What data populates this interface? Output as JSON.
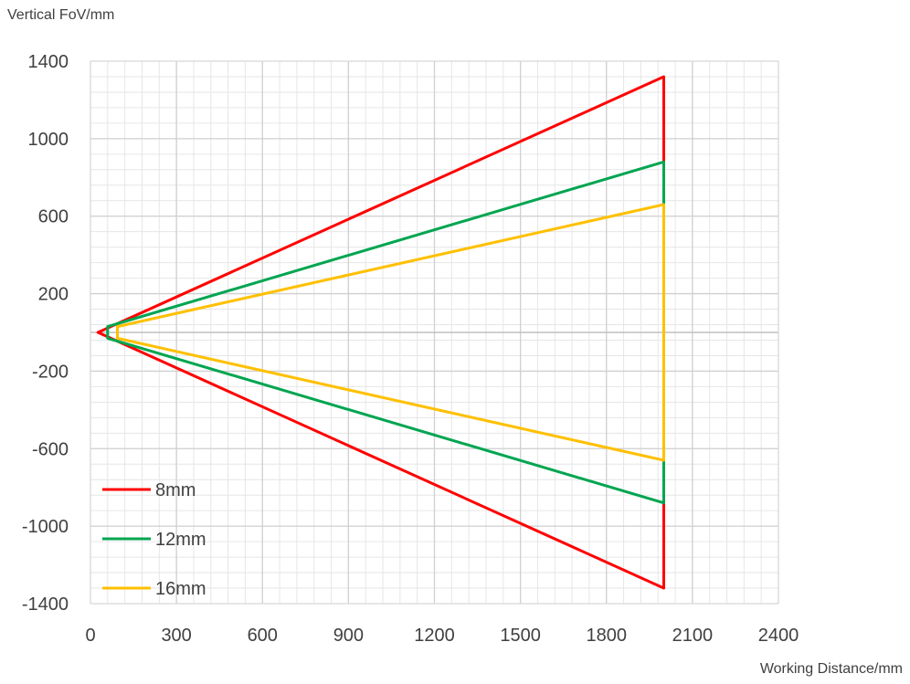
{
  "chart_data": {
    "type": "line",
    "title": "",
    "xlabel": "Working Distance/mm",
    "ylabel": "Vertical FoV/mm",
    "xlim": [
      0,
      2400
    ],
    "ylim": [
      -1400,
      1400
    ],
    "x_ticks": [
      0,
      300,
      600,
      900,
      1200,
      1500,
      1800,
      2100,
      2400
    ],
    "y_ticks": [
      1400,
      1000,
      600,
      200,
      -200,
      -600,
      -1000,
      -1400
    ],
    "x_minor_step": 60,
    "y_minor_step": 80,
    "grid": true,
    "legend_position": "bottom-left",
    "series": [
      {
        "name": "8mm",
        "color": "#ff0000",
        "points": [
          [
            26,
            0
          ],
          [
            2000,
            1320
          ],
          [
            2000,
            -1320
          ],
          [
            26,
            0
          ]
        ]
      },
      {
        "name": "12mm",
        "color": "#00a550",
        "points": [
          [
            60,
            30
          ],
          [
            2000,
            880
          ],
          [
            2000,
            -880
          ],
          [
            60,
            -30
          ],
          [
            60,
            30
          ]
        ]
      },
      {
        "name": "16mm",
        "color": "#ffc000",
        "points": [
          [
            94,
            30
          ],
          [
            2000,
            660
          ],
          [
            2000,
            -660
          ],
          [
            94,
            -30
          ],
          [
            94,
            30
          ]
        ]
      }
    ]
  }
}
